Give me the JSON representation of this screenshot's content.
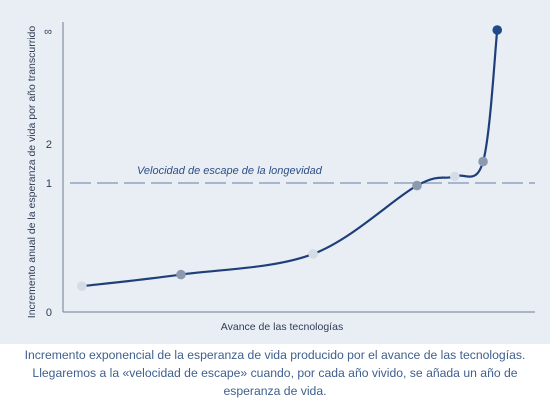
{
  "chart_data": {
    "type": "line",
    "xlabel": "Avance de las tecnologías",
    "ylabel": "Incremento anual de la esperanza de vida por año transcurrido",
    "y_tick_labels": [
      "0",
      "1",
      "2",
      "∞"
    ],
    "annotation": "Velocidad de escape de la longevidad",
    "grid": false,
    "reference_line": {
      "y": 1,
      "style": "dashed",
      "label": "Velocidad de escape de la longevidad"
    },
    "series": [
      {
        "curve": "exponential",
        "points": [
          {
            "x": 0.04,
            "y": 0.2,
            "tone": "light"
          },
          {
            "x": 0.25,
            "y": 0.29,
            "tone": "medium"
          },
          {
            "x": 0.53,
            "y": 0.45,
            "tone": "light"
          },
          {
            "x": 0.75,
            "y": 0.98,
            "tone": "medium"
          },
          {
            "x": 0.83,
            "y": 1.17,
            "tone": "light"
          },
          {
            "x": 0.89,
            "y": 1.55,
            "tone": "medium"
          },
          {
            "x": 0.92,
            "y": 2.2,
            "tone": "dark"
          }
        ]
      }
    ],
    "colors": {
      "curve": "#1f3f7a",
      "dashed": "#7f95b6",
      "axis": "#6f7c8f",
      "light": "#d6dce6",
      "medium": "#8d99af",
      "dark": "#1f4a8c"
    }
  },
  "caption": [
    "Incremento exponencial de la esperanza de vida producido por el avance de las tecnologías.",
    "Llegaremos a la «velocidad de escape» cuando, por cada año vivido, se añada un año de",
    "esperanza de vida."
  ]
}
